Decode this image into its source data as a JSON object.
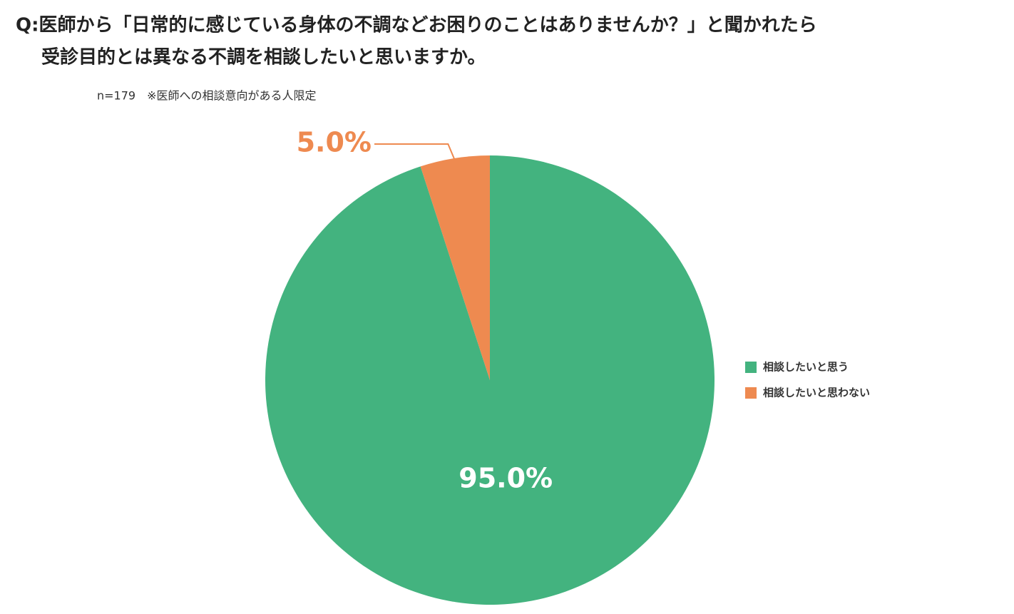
{
  "chart_data": {
    "type": "pie",
    "title": [
      "Q:医師から「日常的に感じている身体の不調などお困りのことはありませんか？」と聞かれたら",
      "受診目的とは異なる不調を相談したいと思いますか。"
    ],
    "subtitle": "n=179　※医師への相談意向がある人限定",
    "categories": [
      "相談したいと思う",
      "相談したいと思わない"
    ],
    "values": [
      95.0,
      5.0
    ],
    "value_labels": [
      "95.0%",
      "5.0%"
    ],
    "colors": [
      "#43b37f",
      "#ee8a50"
    ],
    "legend": "right"
  }
}
